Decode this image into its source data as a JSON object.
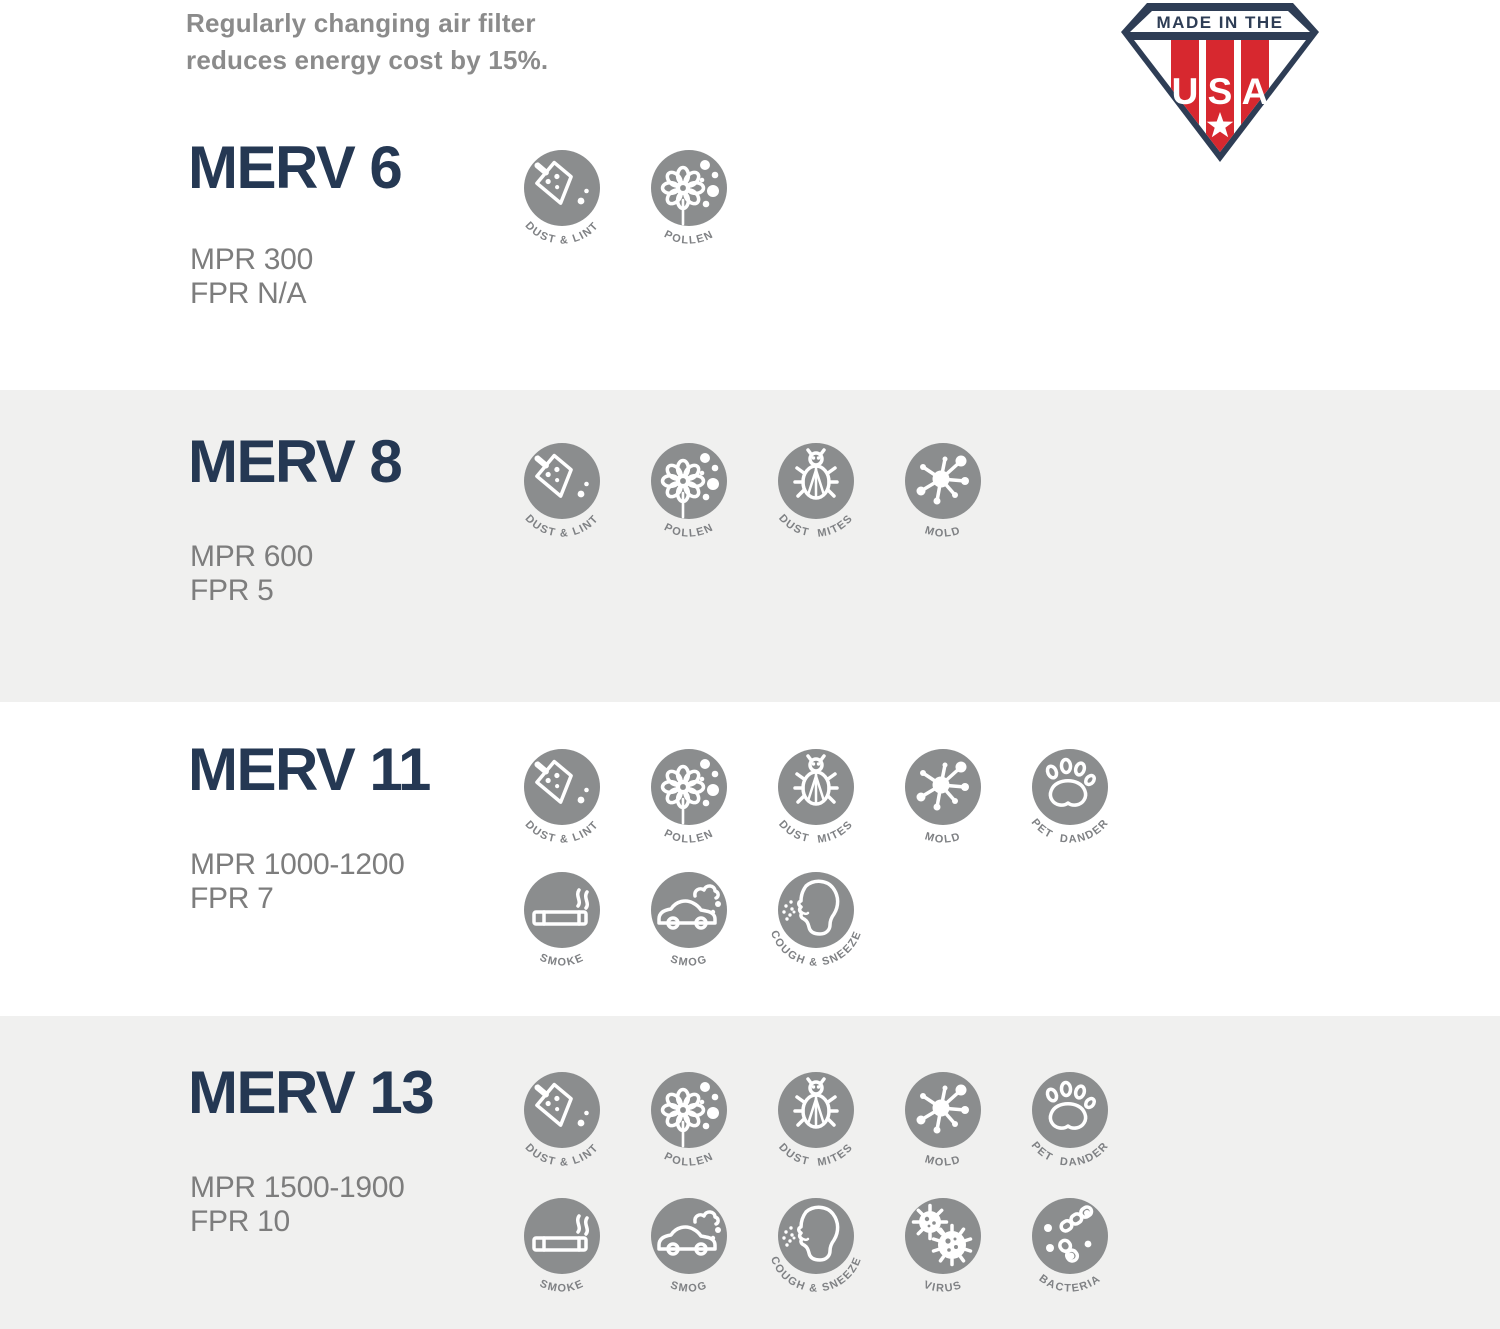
{
  "colors": {
    "navy": "#2e3d55",
    "title_navy": "#253853",
    "red": "#d7282f",
    "icon_gray": "#8b8d8e",
    "band_gray": "#f0f0ef",
    "note_gray": "#8b8b8b",
    "detail_gray": "#7d7d7d",
    "label_gray": "#7f8184"
  },
  "header": {
    "note_line1": "Regularly changing air filter",
    "note_line2": "reduces energy cost by 15%.",
    "badge": {
      "banner": "MADE IN THE",
      "letter_u": "U",
      "letter_s": "S",
      "letter_a": "A"
    }
  },
  "icon_labels": {
    "dust-lint": "DUST & LINT",
    "pollen": "POLLEN",
    "dust-mites": "DUST  MITES",
    "mold": "MOLD",
    "pet-dander": "PET  DANDER",
    "smoke": "SMOKE",
    "smog": "SMOG",
    "cough-sneeze": "COUGH & SNEEZE",
    "virus": "VIRUS",
    "bacteria": "BACTERIA"
  },
  "sections": [
    {
      "title": "MERV 6",
      "mpr": "MPR 300",
      "fpr": "FPR N/A",
      "icon_rows": [
        [
          "dust-lint",
          "pollen"
        ]
      ]
    },
    {
      "title": "MERV 8",
      "mpr": "MPR 600",
      "fpr": "FPR 5",
      "icon_rows": [
        [
          "dust-lint",
          "pollen",
          "dust-mites",
          "mold"
        ]
      ]
    },
    {
      "title": "MERV 11",
      "mpr": "MPR 1000-1200",
      "fpr": "FPR 7",
      "icon_rows": [
        [
          "dust-lint",
          "pollen",
          "dust-mites",
          "mold",
          "pet-dander"
        ],
        [
          "smoke",
          "smog",
          "cough-sneeze"
        ]
      ]
    },
    {
      "title": "MERV 13",
      "mpr": "MPR 1500-1900",
      "fpr": "FPR 10",
      "icon_rows": [
        [
          "dust-lint",
          "pollen",
          "dust-mites",
          "mold",
          "pet-dander"
        ],
        [
          "smoke",
          "smog",
          "cough-sneeze",
          "virus",
          "bacteria"
        ]
      ]
    }
  ]
}
